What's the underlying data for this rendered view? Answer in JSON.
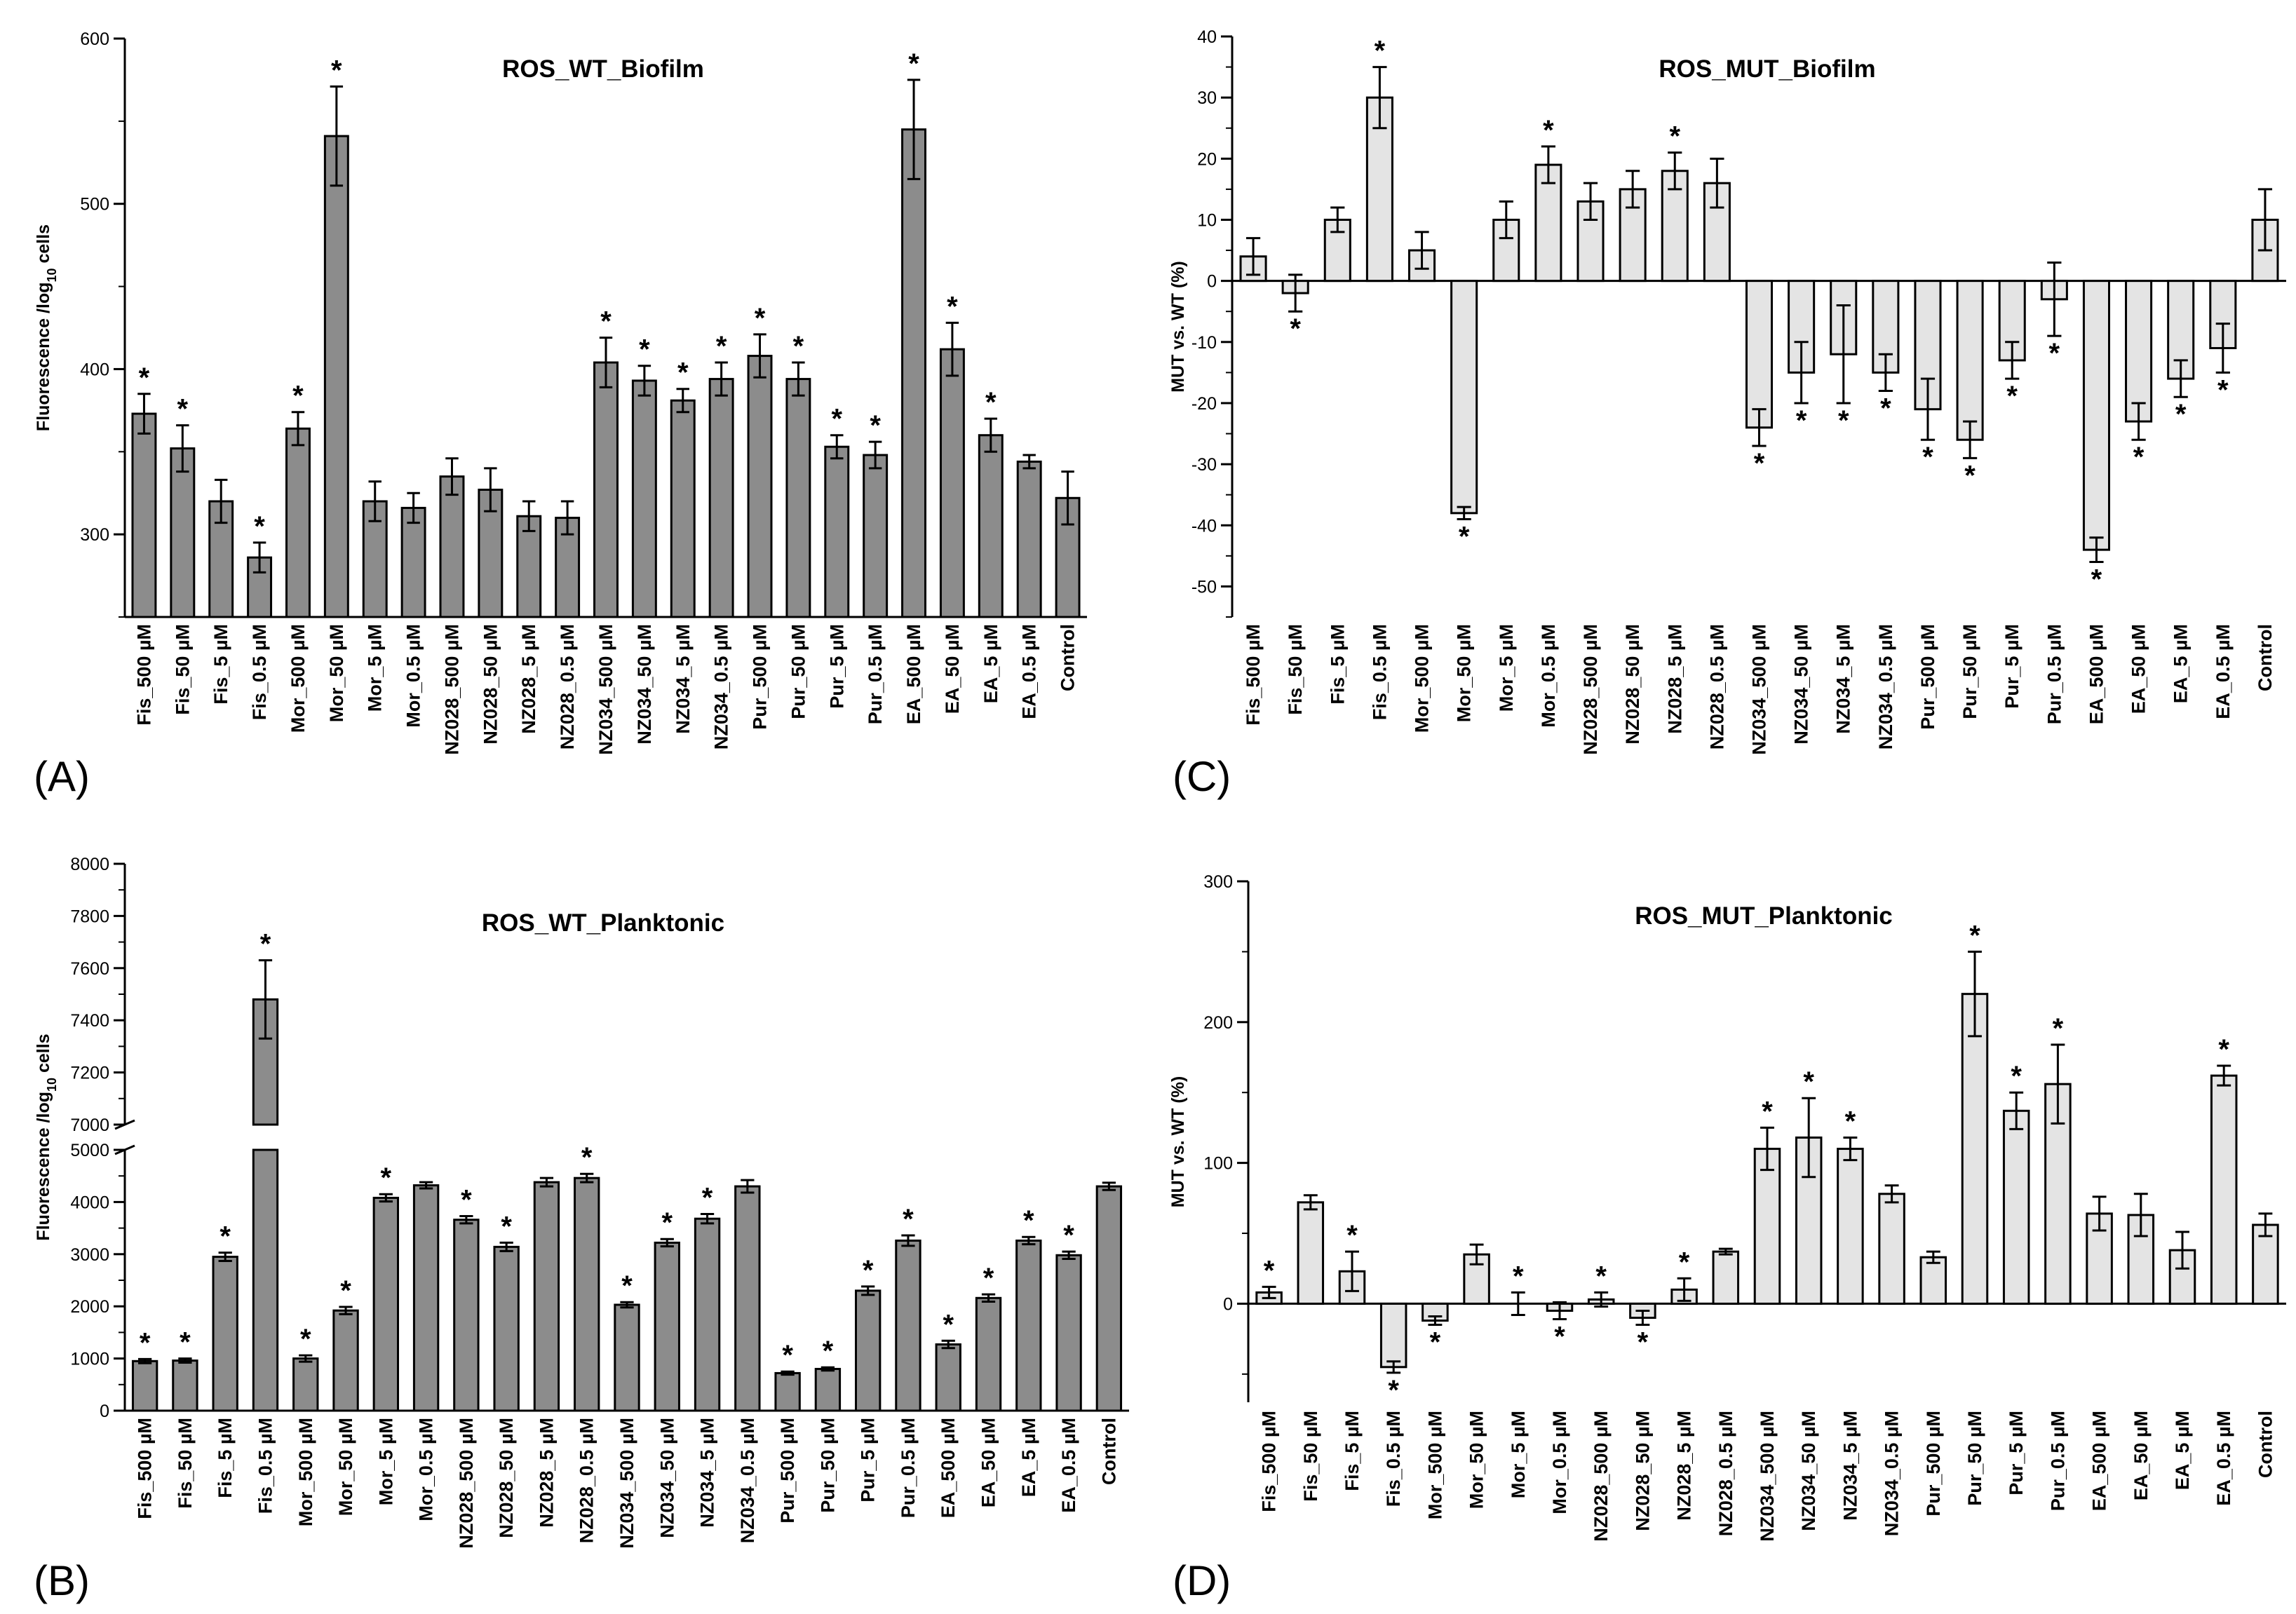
{
  "chart_data": [
    {
      "panel": "(A)",
      "type": "bar",
      "title": "ROS_WT_Biofilm",
      "xlabel": "",
      "ylabel": "Fluorescence /log10 cells",
      "ylim": [
        250,
        600
      ],
      "yticks": [
        300,
        400,
        500,
        600
      ],
      "bar_color": "#8c8c8c",
      "categories": [
        "Fis_500 µM",
        "Fis_50 µM",
        "Fis_5 µM",
        "Fis_0.5 µM",
        "Mor_500 µM",
        "Mor_50 µM",
        "Mor_5 µM",
        "Mor_0.5 µM",
        "NZ028_500 µM",
        "NZ028_50 µM",
        "NZ028_5 µM",
        "NZ028_0.5 µM",
        "NZ034_500 µM",
        "NZ034_50 µM",
        "NZ034_5 µM",
        "NZ034_0.5 µM",
        "Pur_500 µM",
        "Pur_50 µM",
        "Pur_5 µM",
        "Pur_0.5 µM",
        "EA_500 µM",
        "EA_50 µM",
        "EA_5 µM",
        "EA_0.5 µM",
        "Control"
      ],
      "values": [
        373,
        352,
        320,
        286,
        364,
        541,
        320,
        316,
        335,
        327,
        311,
        310,
        404,
        393,
        381,
        394,
        408,
        394,
        353,
        348,
        545,
        412,
        360,
        344,
        322
      ],
      "errors": [
        12,
        14,
        13,
        9,
        10,
        30,
        12,
        9,
        11,
        13,
        9,
        10,
        15,
        9,
        7,
        10,
        13,
        10,
        7,
        8,
        30,
        16,
        10,
        4,
        16
      ],
      "significant": [
        true,
        true,
        false,
        true,
        true,
        true,
        false,
        false,
        false,
        false,
        false,
        false,
        true,
        true,
        true,
        true,
        true,
        true,
        true,
        true,
        true,
        true,
        true,
        false,
        false
      ]
    },
    {
      "panel": "(B)",
      "type": "bar",
      "title": "ROS_WT_Planktonic",
      "xlabel": "",
      "ylabel": "Fluorescence /log10 cells",
      "y_axis_break": {
        "lower": [
          0,
          5000
        ],
        "upper": [
          7000,
          8000
        ]
      },
      "yticks_lower": [
        0,
        1000,
        2000,
        3000,
        4000,
        5000
      ],
      "yticks_upper": [
        7000,
        7200,
        7400,
        7600,
        7800,
        8000
      ],
      "bar_color": "#8c8c8c",
      "categories": [
        "Fis_500 µM",
        "Fis_50 µM",
        "Fis_5 µM",
        "Fis_0.5 µM",
        "Mor_500 µM",
        "Mor_50 µM",
        "Mor_5 µM",
        "Mor_0.5 µM",
        "NZ028_500 µM",
        "NZ028_50 µM",
        "NZ028_5 µM",
        "NZ028_0.5 µM",
        "NZ034_500 µM",
        "NZ034_50 µM",
        "NZ034_5 µM",
        "NZ034_0.5 µM",
        "Pur_500 µM",
        "Pur_50 µM",
        "Pur_5 µM",
        "Pur_0.5 µM",
        "EA_500 µM",
        "EA_50 µM",
        "EA_5 µM",
        "EA_0.5 µM",
        "Control"
      ],
      "values": [
        950,
        960,
        2950,
        7480,
        1000,
        1920,
        4080,
        4320,
        3660,
        3140,
        4380,
        4460,
        2030,
        3220,
        3680,
        4300,
        720,
        800,
        2300,
        3260,
        1270,
        2160,
        3260,
        2980,
        4300
      ],
      "errors": [
        40,
        40,
        80,
        150,
        60,
        70,
        70,
        60,
        70,
        80,
        80,
        80,
        50,
        70,
        90,
        120,
        30,
        30,
        80,
        100,
        70,
        70,
        70,
        70,
        70
      ],
      "significant": [
        true,
        true,
        true,
        true,
        true,
        true,
        true,
        false,
        true,
        true,
        false,
        true,
        true,
        true,
        true,
        false,
        true,
        true,
        true,
        true,
        true,
        true,
        true,
        true,
        false
      ]
    },
    {
      "panel": "(C)",
      "type": "bar",
      "title": "ROS_MUT_Biofilm",
      "xlabel": "",
      "ylabel": "MUT vs. WT (%)",
      "ylim": [
        -55,
        40
      ],
      "yticks": [
        -50,
        -40,
        -30,
        -20,
        -10,
        0,
        10,
        20,
        30,
        40
      ],
      "bar_color": "#e4e4e4",
      "categories": [
        "Fis_500 µM",
        "Fis_50 µM",
        "Fis_5 µM",
        "Fis_0.5 µM",
        "Mor_500 µM",
        "Mor_50 µM",
        "Mor_5 µM",
        "Mor_0.5 µM",
        "NZ028_500 µM",
        "NZ028_50 µM",
        "NZ028_5 µM",
        "NZ028_0.5 µM",
        "NZ034_500 µM",
        "NZ034_50 µM",
        "NZ034_5 µM",
        "NZ034_0.5 µM",
        "Pur_500 µM",
        "Pur_50 µM",
        "Pur_5 µM",
        "Pur_0.5 µM",
        "EA_500 µM",
        "EA_50 µM",
        "EA_5 µM",
        "EA_0.5 µM",
        "Control"
      ],
      "values": [
        4,
        -2,
        10,
        30,
        5,
        -38,
        10,
        19,
        13,
        15,
        18,
        16,
        -24,
        -15,
        -12,
        -15,
        -21,
        -26,
        -13,
        -3,
        -44,
        -23,
        -16,
        -11,
        10
      ],
      "errors": [
        3,
        3,
        2,
        5,
        3,
        1,
        3,
        3,
        3,
        3,
        3,
        4,
        3,
        5,
        8,
        3,
        5,
        3,
        3,
        6,
        2,
        3,
        3,
        4,
        5
      ],
      "significant": [
        false,
        true,
        false,
        true,
        false,
        true,
        false,
        true,
        false,
        false,
        true,
        false,
        true,
        true,
        true,
        true,
        true,
        true,
        true,
        true,
        true,
        true,
        true,
        true,
        false
      ]
    },
    {
      "panel": "(D)",
      "type": "bar",
      "title": "ROS_MUT_Planktonic",
      "xlabel": "",
      "ylabel": "MUT vs. WT (%)",
      "ylim": [
        -70,
        300
      ],
      "yticks": [
        0,
        100,
        200,
        300
      ],
      "bar_color": "#e4e4e4",
      "categories": [
        "Fis_500 µM",
        "Fis_50 µM",
        "Fis_5 µM",
        "Fis_0.5 µM",
        "Mor_500 µM",
        "Mor_50 µM",
        "Mor_5 µM",
        "Mor_0.5 µM",
        "NZ028_500 µM",
        "NZ028_50 µM",
        "NZ028_5 µM",
        "NZ028_0.5 µM",
        "NZ034_500 µM",
        "NZ034_50 µM",
        "NZ034_5 µM",
        "NZ034_0.5 µM",
        "Pur_500 µM",
        "Pur_50 µM",
        "Pur_5 µM",
        "Pur_0.5 µM",
        "EA_500 µM",
        "EA_50 µM",
        "EA_5 µM",
        "EA_0.5 µM",
        "Control"
      ],
      "values": [
        8,
        72,
        23,
        -45,
        -12,
        35,
        0,
        -5,
        3,
        -10,
        10,
        37,
        110,
        118,
        110,
        78,
        33,
        220,
        137,
        156,
        64,
        63,
        38,
        162,
        56
      ],
      "errors": [
        4,
        5,
        14,
        4,
        3,
        7,
        8,
        6,
        5,
        5,
        8,
        2,
        15,
        28,
        8,
        6,
        4,
        30,
        13,
        28,
        12,
        15,
        13,
        7,
        8
      ],
      "significant": [
        true,
        false,
        true,
        true,
        true,
        false,
        true,
        true,
        true,
        true,
        true,
        false,
        true,
        true,
        true,
        false,
        false,
        true,
        true,
        true,
        false,
        false,
        false,
        true,
        false
      ]
    }
  ]
}
